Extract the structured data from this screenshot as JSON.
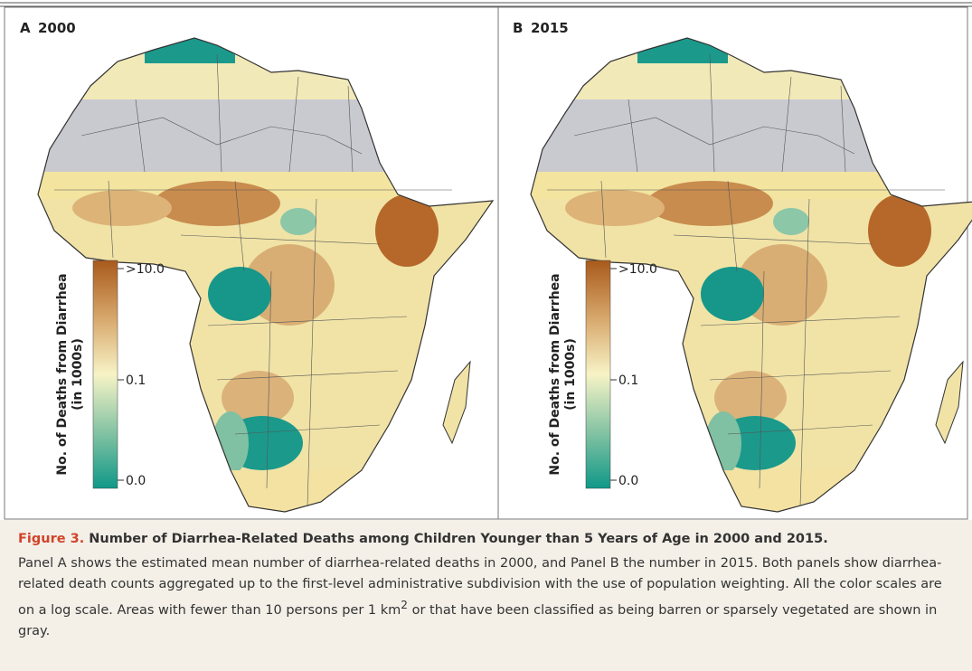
{
  "panels": [
    {
      "label": "A",
      "year": "2000"
    },
    {
      "label": "B",
      "year": "2015"
    }
  ],
  "legend": {
    "title": "No. of Deaths from Diarrhea",
    "subtitle": "(in 1000s)",
    "ticks": [
      ">10.0",
      "0.1",
      "0.0"
    ]
  },
  "caption": {
    "figure": "Figure 3.",
    "title": "Number of Diarrhea-Related Deaths among Children Younger than 5 Years of Age in 2000 and 2015.",
    "text_before": "Panel A shows the estimated mean number of diarrhea-related deaths in 2000, and Panel B the number in 2015. Both panels show diarrhea-related death counts aggregated up to the first-level administrative subdivision with the use of population weighting. All the color scales are on a log scale. Areas with fewer than 10 persons per 1 km",
    "superscript": "2",
    "text_after": " or that have been classified as being barren or sparsely vegetated are shown in gray."
  }
}
